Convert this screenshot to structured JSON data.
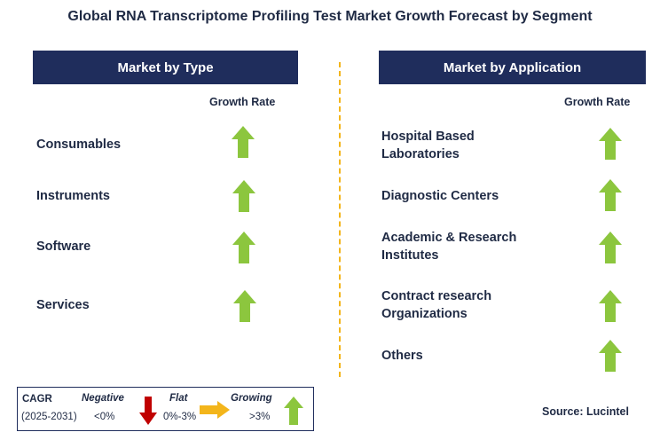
{
  "title": "Global RNA Transcriptome Profiling Test Market Growth Forecast by Segment",
  "left_panel": {
    "header": "Market by Type",
    "growth_label": "Growth Rate",
    "segments": [
      {
        "label": "Consumables",
        "trend": "growing"
      },
      {
        "label": "Instruments",
        "trend": "growing"
      },
      {
        "label": "Software",
        "trend": "growing"
      },
      {
        "label": "Services",
        "trend": "growing"
      }
    ]
  },
  "right_panel": {
    "header": "Market by Application",
    "growth_label": "Growth Rate",
    "segments": [
      {
        "label_line1": "Hospital Based",
        "label_line2": "Laboratories",
        "trend": "growing"
      },
      {
        "label_line1": "Diagnostic Centers",
        "label_line2": "",
        "trend": "growing"
      },
      {
        "label_line1": "Academic & Research",
        "label_line2": "Institutes",
        "trend": "growing"
      },
      {
        "label_line1": "Contract research",
        "label_line2": "Organizations",
        "trend": "growing"
      },
      {
        "label_line1": "Others",
        "label_line2": "",
        "trend": "growing"
      }
    ]
  },
  "legend": {
    "cagr_label": "CAGR",
    "period": "(2025-2031)",
    "negative_label": "Negative",
    "negative_range": "<0%",
    "flat_label": "Flat",
    "flat_range": "0%-3%",
    "growing_label": "Growing",
    "growing_range": ">3%"
  },
  "source": "Source: Lucintel",
  "colors": {
    "header_bg": "#1f2d5c",
    "up_arrow": "#8cc63e",
    "down_arrow": "#c00000",
    "flat_arrow": "#f3b51b",
    "divider": "#f3b51b"
  }
}
